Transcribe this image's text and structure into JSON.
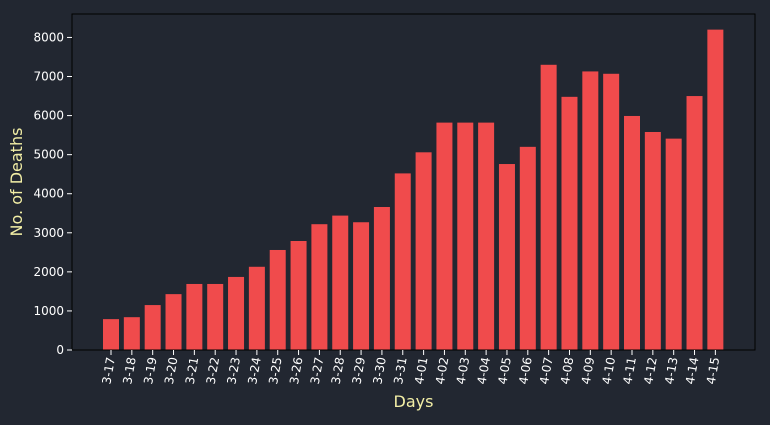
{
  "colors": {
    "background": "#222731",
    "bar": "#f04b4c",
    "axis_label": "#f3efa6",
    "tick_label": "#ffffff",
    "axes_frame": "#000000"
  },
  "chart_data": {
    "type": "bar",
    "title": "",
    "xlabel": "Days",
    "ylabel": "No. of Deaths",
    "categories": [
      "3-17",
      "3-18",
      "3-19",
      "3-20",
      "3-21",
      "3-22",
      "3-23",
      "3-24",
      "3-25",
      "3-26",
      "3-27",
      "3-28",
      "3-29",
      "3-30",
      "3-31",
      "4-01",
      "4-02",
      "4-03",
      "4-04",
      "4-05",
      "4-06",
      "4-07",
      "4-08",
      "4-09",
      "4-10",
      "4-11",
      "4-12",
      "4-13",
      "4-14",
      "4-15"
    ],
    "values": [
      790,
      840,
      1150,
      1430,
      1690,
      1690,
      1870,
      2130,
      2560,
      2790,
      3220,
      3440,
      3270,
      3660,
      4520,
      5060,
      5820,
      5820,
      5820,
      4760,
      5200,
      7300,
      6480,
      7130,
      7070,
      5990,
      5580,
      5410,
      6500,
      8200
    ],
    "ylim": [
      0,
      8600
    ],
    "yticks": [
      0,
      1000,
      2000,
      3000,
      4000,
      5000,
      6000,
      7000,
      8000
    ],
    "grid": false,
    "legend": "none"
  }
}
